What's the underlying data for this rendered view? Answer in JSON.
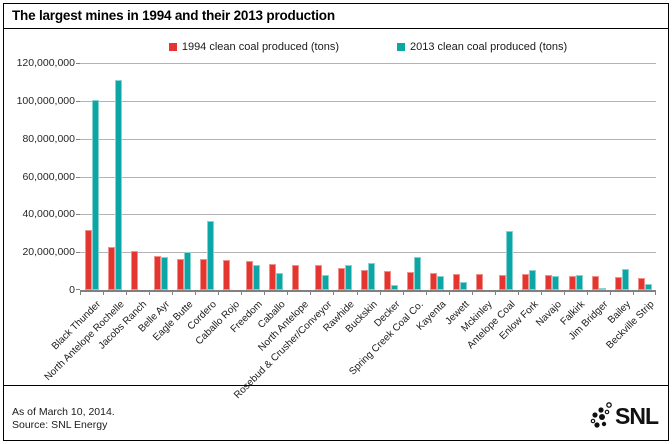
{
  "title": "The largest mines in 1994 and their 2013 production",
  "footer": {
    "as_of": "As of March 10, 2014.",
    "source": "Source: SNL Energy"
  },
  "logo": {
    "text": "SNL"
  },
  "colors": {
    "series_1994": "#e53530",
    "series_2013": "#0ca6a6",
    "gridline": "#b3b3b3",
    "axis": "#808080"
  },
  "chart_data": {
    "type": "bar",
    "title": "The largest mines in 1994 and their 2013 production",
    "xlabel": "",
    "ylabel": "",
    "ylim": [
      0,
      120000000
    ],
    "ytick_step": 20000000,
    "yticks": [
      "120,000,000",
      "100,000,000",
      "80,000,000",
      "60,000,000",
      "40,000,000",
      "20,000,000",
      "0"
    ],
    "grid": "horizontal",
    "legend_position": "top",
    "categories": [
      "Black Thunder",
      "North Antelope Rochelle",
      "Jacobs Ranch",
      "Belle Ayr",
      "Eagle Butte",
      "Cordero",
      "Caballo Rojo",
      "Freedom",
      "Caballo",
      "North Antelope",
      "Rosebud & Crusher/Conveyor",
      "Rawhide",
      "Buckskin",
      "Decker",
      "Spring Creek Coal Co.",
      "Kayenta",
      "Jewett",
      "Mckinley",
      "Antelope Coal",
      "Enlow Fork",
      "Navajo",
      "Falkirk",
      "Jim Bridger",
      "Bailey",
      "Beckville Strip"
    ],
    "series": [
      {
        "name": "1994 clean coal produced (tons)",
        "color": "#e53530",
        "values": [
          31500000,
          23000000,
          20500000,
          18000000,
          16500000,
          16500000,
          16000000,
          15500000,
          14000000,
          13500000,
          13000000,
          11500000,
          10500000,
          10000000,
          9500000,
          9000000,
          8500000,
          8500000,
          8000000,
          8500000,
          8000000,
          7500000,
          7500000,
          7000000,
          6500000
        ]
      },
      {
        "name": "2013 clean coal produced (tons)",
        "color": "#0ca6a6",
        "values": [
          100500000,
          111000000,
          0,
          17500000,
          20000000,
          36500000,
          0,
          13500000,
          9000000,
          0,
          8000000,
          13500000,
          14500000,
          2500000,
          17500000,
          7500000,
          4500000,
          0,
          31000000,
          10500000,
          7500000,
          8000000,
          1000000,
          11000000,
          3000000
        ]
      }
    ]
  }
}
